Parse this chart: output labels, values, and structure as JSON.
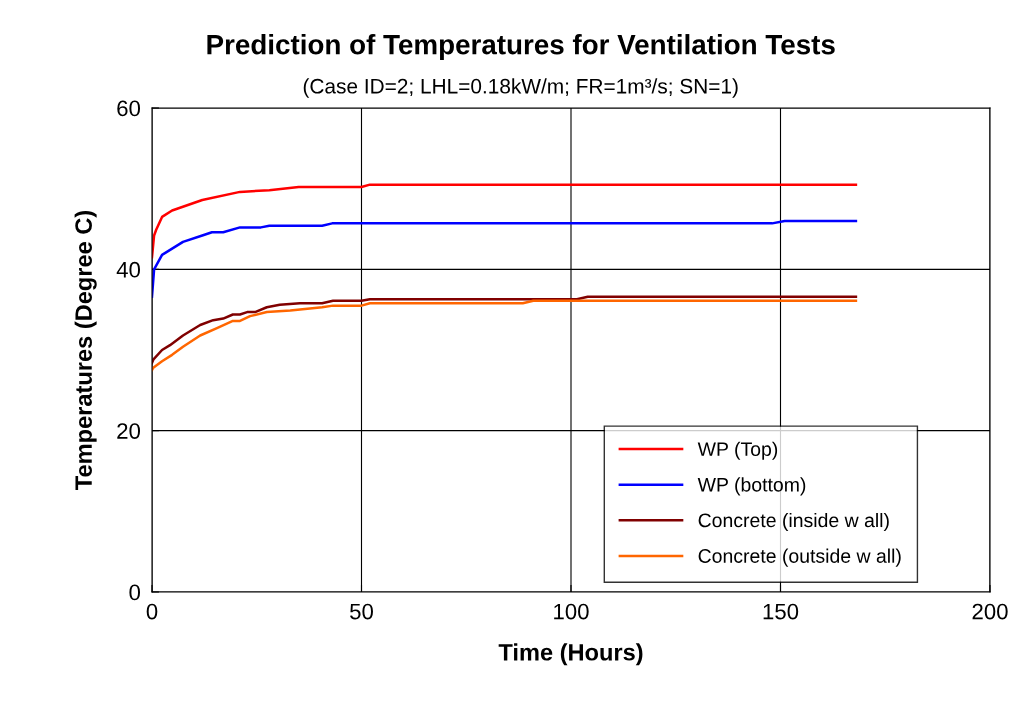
{
  "chart_data": {
    "type": "line",
    "title": "Prediction of Temperatures for Ventilation Tests",
    "subtitle": "(Case ID=2; LHL=0.18kW/m; FR=1m³/s; SN=1)",
    "xlabel": "Time (Hours)",
    "ylabel": "Temperatures (Degree C)",
    "xlim": [
      0,
      200
    ],
    "xticks": [
      0,
      50,
      100,
      150,
      200
    ],
    "ylim": [
      0,
      60
    ],
    "yticks": [
      0,
      20,
      40,
      60
    ],
    "grid": true,
    "legend": "bottom right",
    "marker": "none",
    "line_style": "solid",
    "series": [
      {
        "name": "WP (Top)",
        "color": "#ff0000",
        "x": [
          0,
          0.5,
          1,
          2.4,
          4.8,
          12,
          21,
          28,
          35,
          50,
          52,
          168
        ],
        "values": [
          41.5,
          44.2,
          44.9,
          46.5,
          47.3,
          48.6,
          49.6,
          49.8,
          50.2,
          50.2,
          50.5,
          50.5
        ]
      },
      {
        "name": "WP (bottom)",
        "color": "#0000ff",
        "x": [
          0,
          0.5,
          2.4,
          7.4,
          12,
          14.3,
          17,
          21,
          26,
          28,
          40.6,
          43,
          148,
          151,
          168
        ],
        "values": [
          36.6,
          40,
          41.8,
          43.4,
          44.2,
          44.6,
          44.6,
          45.2,
          45.2,
          45.4,
          45.4,
          45.7,
          45.7,
          46.0,
          46.0
        ]
      },
      {
        "name": "Concrete (inside w all)",
        "color": "#800000",
        "x": [
          0,
          0.3,
          2.4,
          4.3,
          7.4,
          11.5,
          14.6,
          17,
          19.3,
          21,
          22.7,
          24.6,
          27.4,
          30.5,
          35.3,
          40.6,
          43.2,
          50,
          52,
          101.4,
          104,
          168
        ],
        "values": [
          28.4,
          28.8,
          30.0,
          30.6,
          31.8,
          33.1,
          33.7,
          33.9,
          34.4,
          34.4,
          34.7,
          34.7,
          35.3,
          35.6,
          35.8,
          35.8,
          36.1,
          36.1,
          36.3,
          36.3,
          36.6,
          36.6
        ]
      },
      {
        "name": "Concrete (outside w all)",
        "color": "#ff6600",
        "x": [
          0,
          0.3,
          2.4,
          4.8,
          7.4,
          11.5,
          15.5,
          19.3,
          21,
          23.4,
          27.4,
          33,
          40.6,
          43.2,
          50,
          52,
          88.5,
          91,
          168
        ],
        "values": [
          27.5,
          27.8,
          28.6,
          29.4,
          30.4,
          31.8,
          32.7,
          33.6,
          33.6,
          34.2,
          34.7,
          34.9,
          35.3,
          35.5,
          35.5,
          35.8,
          35.8,
          36.1,
          36.1
        ]
      }
    ]
  }
}
